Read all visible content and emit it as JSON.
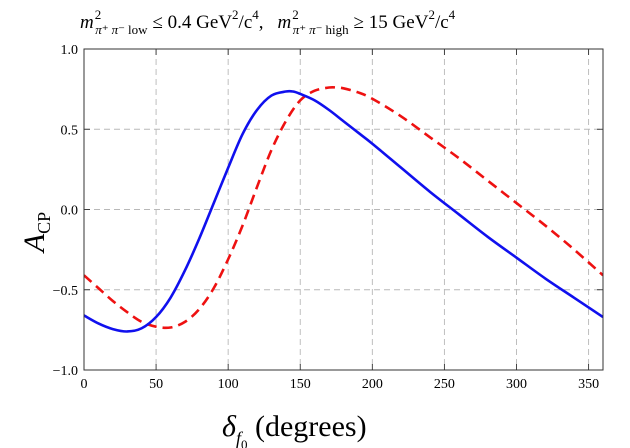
{
  "chart_data": {
    "type": "line",
    "title": {
      "m_symbol": "m",
      "exp": "2",
      "sub_pi_plus": "π⁺",
      "sub_pi_minus": "π⁻",
      "sub_low": "low",
      "sub_high": "high",
      "rel_low": "≤ 0.4 GeV",
      "rel_high": "≥ 15 GeV",
      "unit_tail": "/c",
      "exp4": "4",
      "separator": ","
    },
    "xlabel": {
      "delta": "δ",
      "sub_f": "f",
      "sub_0": "0",
      "unit": " (degrees)"
    },
    "ylabel": {
      "main": "A",
      "sub": "CP"
    },
    "xlim": [
      0,
      360
    ],
    "ylim": [
      -1.0,
      1.0
    ],
    "xticks": [
      0,
      50,
      100,
      150,
      200,
      250,
      300,
      350
    ],
    "xtick_labels": [
      "0",
      "50",
      "100",
      "150",
      "200",
      "250",
      "300",
      "350"
    ],
    "yticks": [
      -1.0,
      -0.5,
      0.0,
      0.5,
      1.0
    ],
    "ytick_labels": [
      "−1.0",
      "−0.5",
      "0.0",
      "0.5",
      "1.0"
    ],
    "grid": true,
    "series": [
      {
        "color": "#1010ee",
        "style": "solid",
        "x": [
          0,
          10,
          20,
          30,
          40,
          50,
          60,
          70,
          80,
          90,
          100,
          110,
          120,
          130,
          140,
          145,
          150,
          160,
          170,
          180,
          190,
          200,
          220,
          240,
          260,
          280,
          300,
          320,
          340,
          360
        ],
        "y": [
          -0.66,
          -0.71,
          -0.745,
          -0.76,
          -0.74,
          -0.67,
          -0.55,
          -0.38,
          -0.18,
          0.04,
          0.26,
          0.47,
          0.62,
          0.71,
          0.735,
          0.735,
          0.72,
          0.68,
          0.62,
          0.55,
          0.48,
          0.41,
          0.26,
          0.11,
          -0.03,
          -0.17,
          -0.3,
          -0.43,
          -0.55,
          -0.67
        ]
      },
      {
        "color": "#ee1111",
        "style": "dashed",
        "x": [
          0,
          10,
          20,
          30,
          40,
          50,
          60,
          70,
          80,
          90,
          100,
          110,
          120,
          130,
          140,
          150,
          160,
          170,
          175,
          180,
          190,
          200,
          220,
          240,
          260,
          280,
          300,
          320,
          340,
          360
        ],
        "y": [
          -0.41,
          -0.49,
          -0.57,
          -0.64,
          -0.7,
          -0.73,
          -0.735,
          -0.7,
          -0.62,
          -0.49,
          -0.31,
          -0.1,
          0.14,
          0.37,
          0.55,
          0.68,
          0.74,
          0.76,
          0.76,
          0.755,
          0.73,
          0.69,
          0.58,
          0.45,
          0.32,
          0.18,
          0.04,
          -0.1,
          -0.25,
          -0.41
        ]
      }
    ]
  }
}
